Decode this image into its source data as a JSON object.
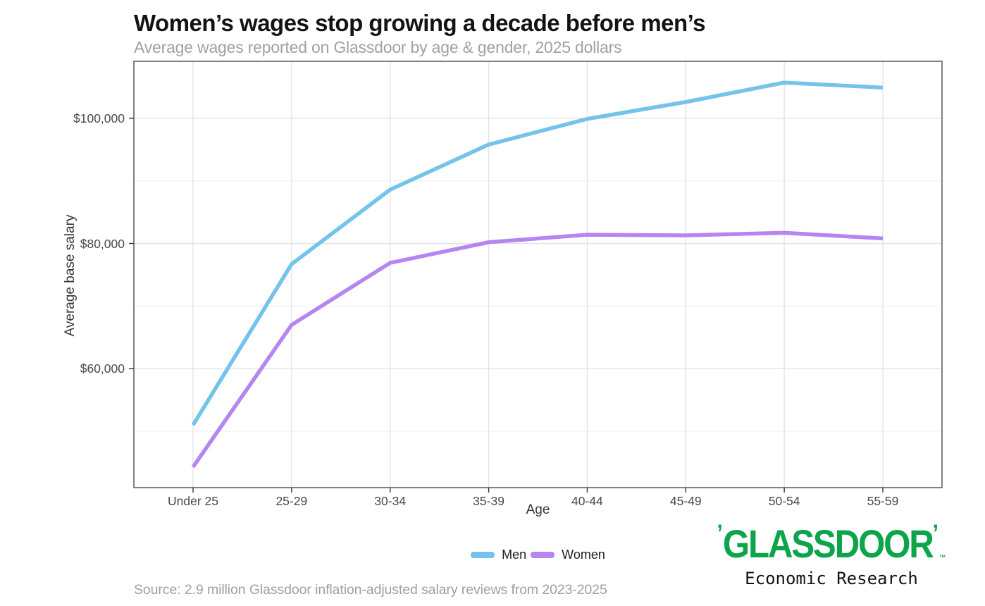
{
  "page": {
    "title": "Women’s wages stop growing a decade before men’s",
    "subtitle": "Average wages reported on Glassdoor by age & gender, 2025 dollars",
    "source_note": "Source: 2.9 million Glassdoor inflation-adjusted salary reviews from 2023-2025"
  },
  "branding": {
    "wordmark": "GLASSDOOR",
    "open_mark": "’",
    "close_mark": "’",
    "trademark": "™",
    "tagline": "Economic Research",
    "brand_green": "#0DA54C"
  },
  "chart_data": {
    "type": "line",
    "title": "Women’s wages stop growing a decade before men’s",
    "subtitle": "Average wages reported on Glassdoor by age & gender, 2025 dollars",
    "xlabel": "Age",
    "ylabel": "Average base salary",
    "categories": [
      "Under 25",
      "25-29",
      "30-34",
      "35-39",
      "40-44",
      "45-49",
      "50-54",
      "55-59"
    ],
    "series": [
      {
        "name": "Men",
        "color": "#73C3EB",
        "values": [
          51000,
          76700,
          88600,
          95800,
          99900,
          102600,
          105700,
          104900
        ]
      },
      {
        "name": "Women",
        "color": "#B685F1",
        "values": [
          44300,
          67000,
          76900,
          80200,
          81400,
          81300,
          81700,
          80800
        ]
      }
    ],
    "y_ticks": [
      {
        "value": 60000,
        "label": "$60,000"
      },
      {
        "value": 80000,
        "label": "$80,000"
      },
      {
        "value": 100000,
        "label": "$100,000"
      }
    ],
    "y_minor_gridlines": [
      50000,
      70000,
      90000
    ],
    "ylim": [
      41000,
      109100
    ],
    "grid": "on",
    "legend_position": "bottom",
    "panel_border_color": "#4d4d4d",
    "major_grid_color": "#e3e3e3",
    "minor_grid_color": "#f0f0f0",
    "tick_color": "#333333"
  }
}
